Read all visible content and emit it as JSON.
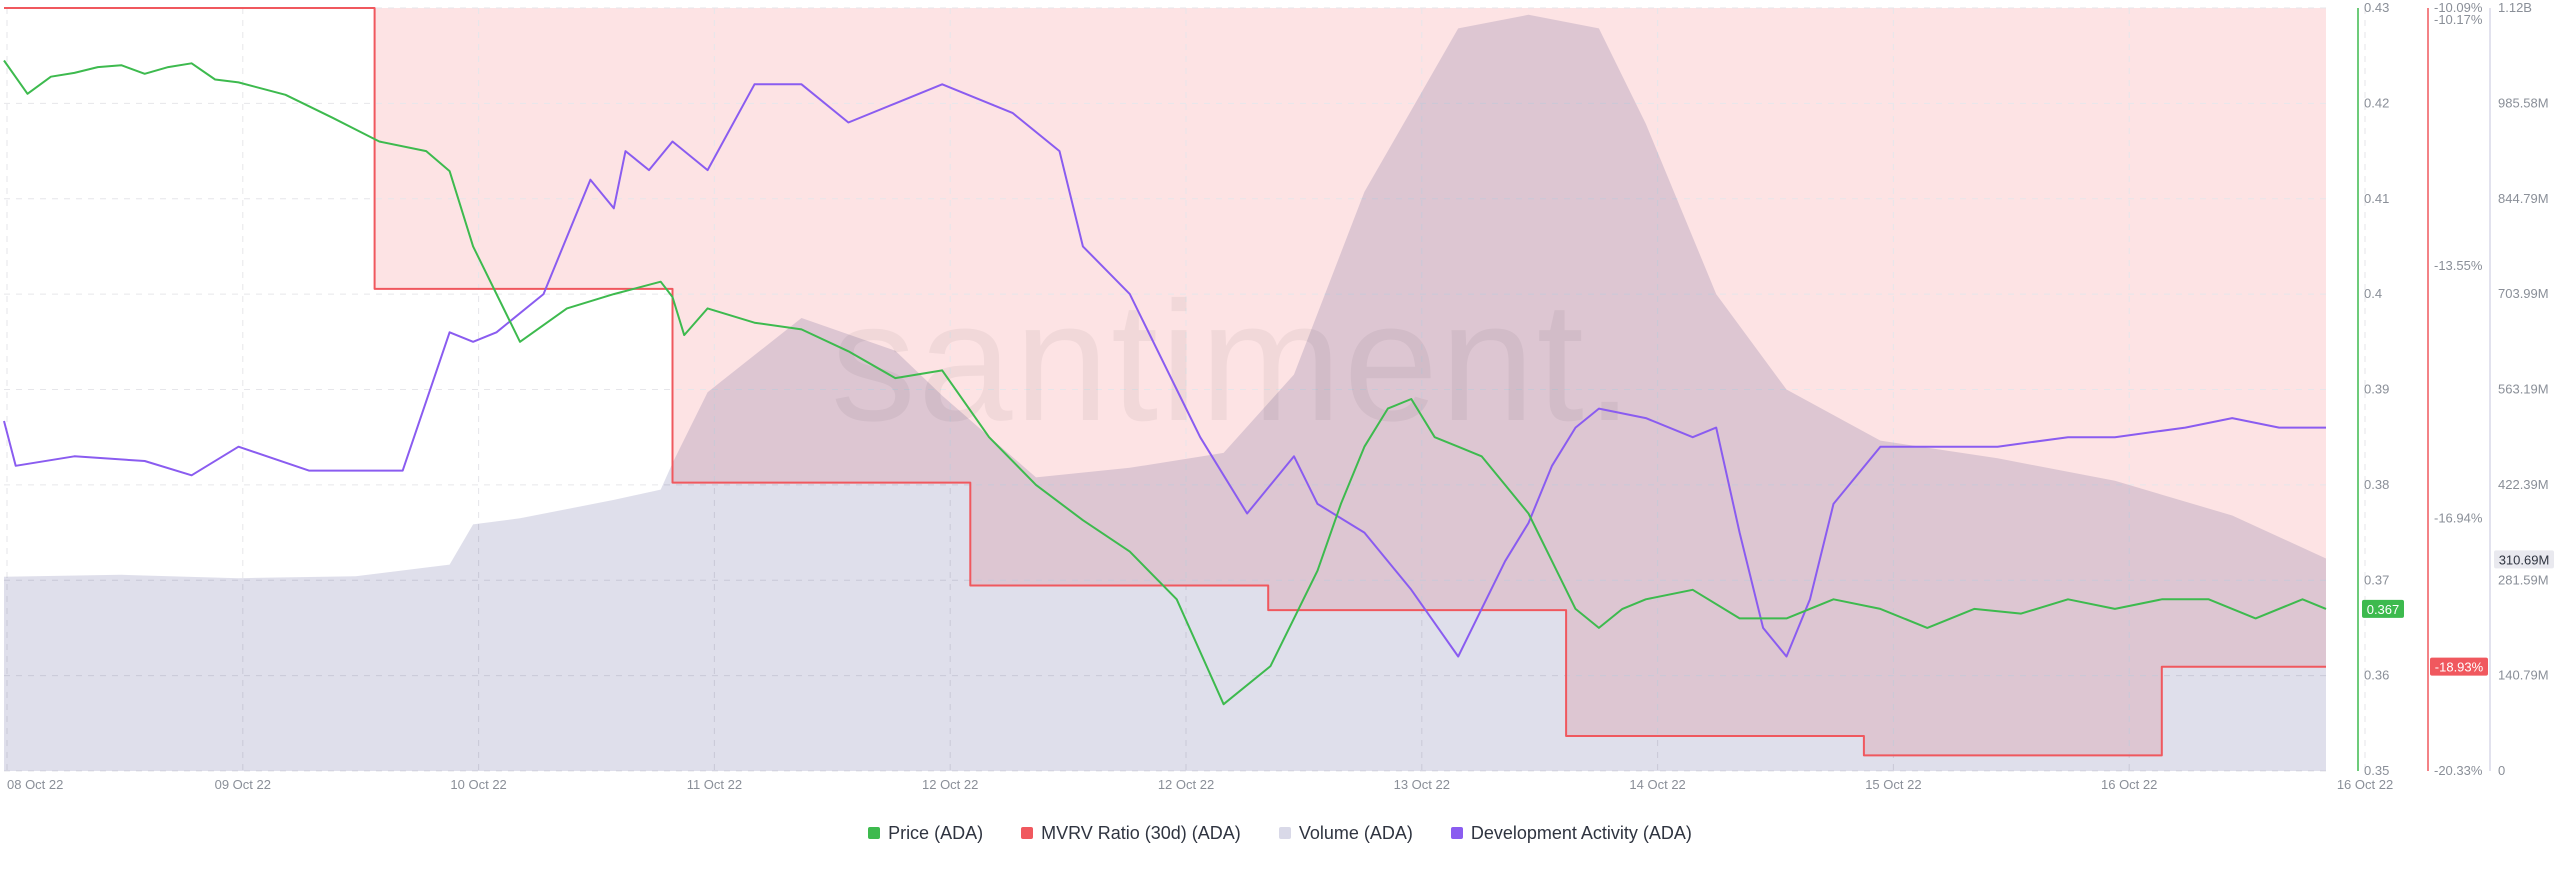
{
  "chart_data": {
    "type": "line",
    "watermark": "santiment.",
    "x_axis": {
      "ticks": [
        "08 Oct 22",
        "09 Oct 22",
        "10 Oct 22",
        "11 Oct 22",
        "12 Oct 22",
        "12 Oct 22",
        "13 Oct 22",
        "14 Oct 22",
        "15 Oct 22",
        "16 Oct 22",
        "16 Oct 22"
      ]
    },
    "price_axis": {
      "ticks": [
        "0.43",
        "0.42",
        "0.41",
        "0.4",
        "0.39",
        "0.38",
        "0.37",
        "0.36",
        "0.35"
      ],
      "ylim": [
        0.35,
        0.43
      ]
    },
    "mvrv_axis": {
      "ticks": [
        "-10.09%",
        "-10.17%",
        "-13.55%",
        "-16.94%",
        "-20.33%"
      ],
      "ylim": [
        -20.33,
        -10.09
      ]
    },
    "volume_axis": {
      "ticks": [
        "1.12B",
        "985.58M",
        "844.79M",
        "703.99M",
        "563.19M",
        "422.39M",
        "281.59M",
        "140.79M",
        "0"
      ],
      "ylim": [
        0,
        1120000000
      ]
    },
    "current_labels": {
      "price": "0.367",
      "mvrv": "-18.93%",
      "volume": "310.69M"
    },
    "legend": [
      {
        "name": "Price (ADA)",
        "color": "#3dba4e"
      },
      {
        "name": "MVRV Ratio (30d) (ADA)",
        "color": "#f0585e"
      },
      {
        "name": "Volume (ADA)",
        "color": "#d9d9e8"
      },
      {
        "name": "Development Activity (ADA)",
        "color": "#8a5cf0"
      }
    ],
    "series": [
      {
        "name": "Price (ADA)",
        "axis": "price",
        "color": "#3dba4e",
        "x": [
          0,
          0.1,
          0.2,
          0.3,
          0.4,
          0.5,
          0.6,
          0.7,
          0.8,
          0.9,
          1.0,
          1.2,
          1.4,
          1.6,
          1.8,
          1.9,
          2.0,
          2.2,
          2.4,
          2.6,
          2.8,
          2.85,
          2.9,
          3.0,
          3.2,
          3.4,
          3.6,
          3.8,
          4.0,
          4.2,
          4.4,
          4.6,
          4.8,
          5.0,
          5.2,
          5.4,
          5.5,
          5.6,
          5.7,
          5.8,
          5.9,
          6.0,
          6.1,
          6.2,
          6.3,
          6.4,
          6.5,
          6.6,
          6.7,
          6.8,
          6.9,
          7.0,
          7.2,
          7.4,
          7.6,
          7.8,
          8.0,
          8.2,
          8.4,
          8.6,
          8.8,
          9.0,
          9.2,
          9.4,
          9.6,
          9.8,
          9.9
        ],
        "y": [
          0.4245,
          0.421,
          0.4228,
          0.4232,
          0.4238,
          0.424,
          0.4231,
          0.4238,
          0.4242,
          0.4225,
          0.4222,
          0.4209,
          0.4185,
          0.416,
          0.415,
          0.4129,
          0.405,
          0.395,
          0.3985,
          0.4,
          0.4013,
          0.3997,
          0.3957,
          0.3985,
          0.397,
          0.3963,
          0.394,
          0.3912,
          0.392,
          0.385,
          0.38,
          0.3763,
          0.373,
          0.368,
          0.357,
          0.361,
          0.366,
          0.371,
          0.378,
          0.384,
          0.388,
          0.389,
          0.385,
          0.384,
          0.383,
          0.38,
          0.377,
          0.372,
          0.367,
          0.365,
          0.367,
          0.368,
          0.369,
          0.366,
          0.366,
          0.368,
          0.367,
          0.365,
          0.367,
          0.3665,
          0.368,
          0.367,
          0.368,
          0.368,
          0.366,
          0.368,
          0.367
        ]
      },
      {
        "name": "MVRV Ratio (30d) (ADA)",
        "axis": "mvrv",
        "color": "#f0585e",
        "x": [
          0,
          1.58,
          1.58,
          2.85,
          2.85,
          4.12,
          4.12,
          5.39,
          5.39,
          6.66,
          6.66,
          7.93,
          7.93,
          9.2,
          9.2,
          9.9
        ],
        "y": [
          -10.09,
          -10.09,
          -13.86,
          -13.86,
          -16.46,
          -16.46,
          -17.84,
          -17.84,
          -18.17,
          -18.17,
          -19.86,
          -19.86,
          -20.12,
          -20.12,
          -18.93,
          -18.93
        ]
      },
      {
        "name": "Volume (ADA)",
        "axis": "volume",
        "color": "#d9d9e8",
        "x": [
          0,
          0.5,
          1.0,
          1.5,
          1.9,
          2.0,
          2.2,
          2.6,
          2.8,
          2.85,
          3.0,
          3.4,
          3.8,
          4.0,
          4.4,
          4.8,
          5.2,
          5.5,
          5.8,
          6.0,
          6.2,
          6.5,
          6.8,
          7.0,
          7.3,
          7.6,
          8.0,
          8.5,
          9.0,
          9.5,
          9.9
        ],
        "y": [
          285000000,
          288000000,
          283000000,
          286000000,
          303000000,
          362000000,
          371000000,
          398000000,
          413000000,
          452000000,
          556000000,
          665000000,
          617000000,
          551000000,
          431000000,
          445000000,
          467000000,
          582000000,
          850000000,
          970000000,
          1090000000,
          1110000000,
          1090000000,
          950000000,
          700000000,
          560000000,
          485000000,
          459000000,
          426000000,
          375000000,
          312000000
        ]
      },
      {
        "name": "Development Activity (ADA)",
        "axis": "price",
        "color": "#8a5cf0",
        "x": [
          0,
          0.05,
          0.3,
          0.6,
          0.8,
          1.0,
          1.3,
          1.5,
          1.7,
          1.9,
          2.0,
          2.1,
          2.3,
          2.5,
          2.6,
          2.65,
          2.75,
          2.85,
          3.0,
          3.2,
          3.4,
          3.6,
          3.8,
          4.0,
          4.3,
          4.5,
          4.6,
          4.8,
          5.0,
          5.1,
          5.3,
          5.5,
          5.6,
          5.8,
          6.0,
          6.2,
          6.4,
          6.5,
          6.6,
          6.7,
          6.8,
          7.0,
          7.2,
          7.3,
          7.4,
          7.5,
          7.6,
          7.7,
          7.8,
          8.0,
          8.2,
          8.5,
          8.8,
          9.0,
          9.3,
          9.5,
          9.7,
          9.9
        ],
        "y": [
          0.3867,
          0.382,
          0.383,
          0.3825,
          0.381,
          0.384,
          0.3815,
          0.3815,
          0.3815,
          0.396,
          0.395,
          0.396,
          0.4,
          0.412,
          0.409,
          0.415,
          0.413,
          0.416,
          0.413,
          0.422,
          0.422,
          0.418,
          0.42,
          0.422,
          0.419,
          0.415,
          0.405,
          0.4,
          0.39,
          0.385,
          0.377,
          0.383,
          0.378,
          0.375,
          0.369,
          0.362,
          0.372,
          0.376,
          0.382,
          0.386,
          0.388,
          0.387,
          0.385,
          0.386,
          0.375,
          0.365,
          0.362,
          0.368,
          0.378,
          0.384,
          0.384,
          0.384,
          0.385,
          0.385,
          0.386,
          0.387,
          0.386,
          0.386
        ]
      }
    ]
  }
}
